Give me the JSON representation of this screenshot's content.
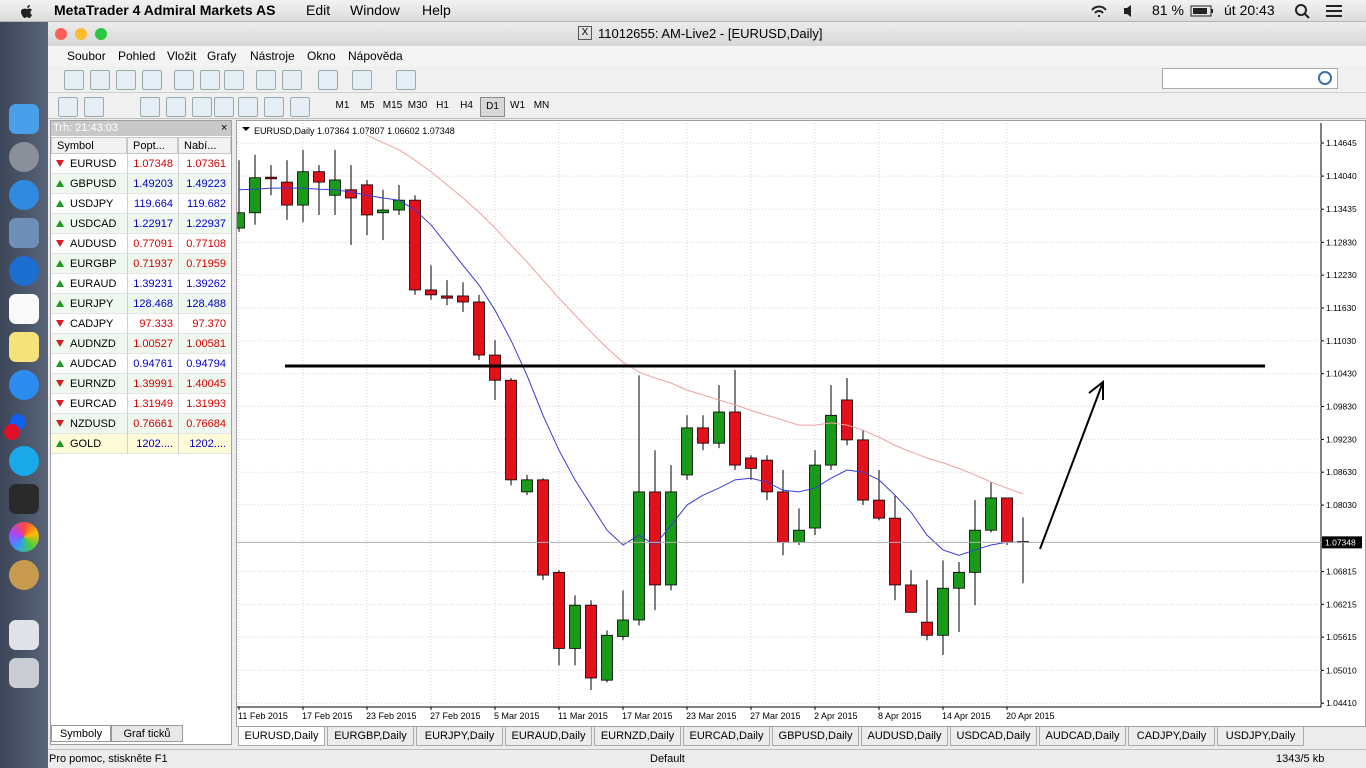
{
  "menubar": {
    "app": "MetaTrader 4 Admiral Markets AS",
    "items": [
      "Edit",
      "Window",
      "Help"
    ],
    "battery": "81 %",
    "clock": "út 20:43"
  },
  "window_title": "11012655: AM-Live2 - [EURUSD,Daily]",
  "menu": [
    "Soubor",
    "Pohled",
    "Vložit",
    "Grafy",
    "Nástroje",
    "Okno",
    "Nápověda"
  ],
  "timeframes": [
    "M1",
    "M5",
    "M15",
    "M30",
    "H1",
    "H4",
    "D1",
    "W1",
    "MN"
  ],
  "active_timeframe": "D1",
  "market_watch": {
    "title": "Trh: 21:43:03",
    "headers": [
      "Symbol",
      "Popt...",
      "Nabí..."
    ],
    "rows": [
      {
        "symbol": "EURUSD",
        "bid": "1.07348",
        "ask": "1.07361",
        "trend": "down",
        "color": "#d40000"
      },
      {
        "symbol": "GBPUSD",
        "bid": "1.49203",
        "ask": "1.49223",
        "trend": "up",
        "color": "#0000c8"
      },
      {
        "symbol": "USDJPY",
        "bid": "119.664",
        "ask": "119.682",
        "trend": "up",
        "color": "#0000c8"
      },
      {
        "symbol": "USDCAD",
        "bid": "1.22917",
        "ask": "1.22937",
        "trend": "up",
        "color": "#0000c8"
      },
      {
        "symbol": "AUDUSD",
        "bid": "0.77091",
        "ask": "0.77108",
        "trend": "down",
        "color": "#d40000"
      },
      {
        "symbol": "EURGBP",
        "bid": "0.71937",
        "ask": "0.71959",
        "trend": "up",
        "color": "#d40000"
      },
      {
        "symbol": "EURAUD",
        "bid": "1.39231",
        "ask": "1.39262",
        "trend": "up",
        "color": "#0000c8"
      },
      {
        "symbol": "EURJPY",
        "bid": "128.468",
        "ask": "128.488",
        "trend": "up",
        "color": "#0000c8"
      },
      {
        "symbol": "CADJPY",
        "bid": "97.333",
        "ask": "97.370",
        "trend": "down",
        "color": "#d40000"
      },
      {
        "symbol": "AUDNZD",
        "bid": "1.00527",
        "ask": "1.00581",
        "trend": "down",
        "color": "#d40000"
      },
      {
        "symbol": "AUDCAD",
        "bid": "0.94761",
        "ask": "0.94794",
        "trend": "up",
        "color": "#0000c8"
      },
      {
        "symbol": "EURNZD",
        "bid": "1.39991",
        "ask": "1.40045",
        "trend": "down",
        "color": "#d40000"
      },
      {
        "symbol": "EURCAD",
        "bid": "1.31949",
        "ask": "1.31993",
        "trend": "down",
        "color": "#d40000"
      },
      {
        "symbol": "NZDUSD",
        "bid": "0.76661",
        "ask": "0.76684",
        "trend": "down",
        "color": "#d40000"
      },
      {
        "symbol": "GOLD",
        "bid": "1202....",
        "ask": "1202....",
        "trend": "up",
        "color": "#0000c8"
      }
    ],
    "tabs": [
      "Symboly",
      "Graf ticků"
    ]
  },
  "chart_data": {
    "type": "candlestick",
    "title": "EURUSD,Daily",
    "categories": [
      "11 Feb 2015",
      null,
      null,
      null,
      "17 Feb 2015",
      null,
      null,
      null,
      "23 Feb 2015",
      null,
      null,
      null,
      "27 Feb 2015",
      null,
      null,
      null,
      "5 Mar 2015",
      null,
      null,
      null,
      "11 Mar 2015",
      null,
      null,
      null,
      "17 Mar 2015",
      null,
      null,
      null,
      "23 Mar 2015",
      null,
      null,
      null,
      "27 Mar 2015",
      null,
      null,
      null,
      "2 Apr 2015",
      null,
      null,
      null,
      "8 Apr 2015",
      null,
      null,
      null,
      "14 Apr 2015",
      null,
      null,
      null,
      "20 Apr 2015",
      null
    ],
    "open": [
      1.1309,
      1.1337,
      1.1402,
      1.1393,
      1.1351,
      1.1412,
      1.1369,
      1.1379,
      1.1388,
      1.1337,
      1.1342,
      1.136,
      1.1196,
      1.1185,
      1.1185,
      1.1174,
      1.1077,
      1.1031,
      1.0827,
      1.0849,
      1.068,
      1.0541,
      1.062,
      1.0483,
      1.0563,
      1.0593,
      1.0827,
      1.0657,
      1.0858,
      1.0944,
      1.0916,
      1.0973,
      1.0889,
      1.0885,
      1.0827,
      1.0735,
      1.0761,
      1.0876,
      1.0995,
      1.0922,
      1.0812,
      1.0779,
      1.0657,
      1.0589,
      1.0565,
      1.0651,
      1.068,
      1.0757,
      1.0816,
      1.07364
    ],
    "high": [
      1.1433,
      1.1443,
      1.1424,
      1.1433,
      1.1452,
      1.1424,
      1.1452,
      1.1424,
      1.1397,
      1.1379,
      1.1388,
      1.1369,
      1.1241,
      1.1214,
      1.121,
      1.1187,
      1.1104,
      1.1035,
      1.0858,
      1.0852,
      1.0684,
      1.0638,
      1.0629,
      1.0574,
      1.0647,
      1.104,
      1.0903,
      1.0876,
      1.0967,
      1.0967,
      1.1022,
      1.105,
      1.0894,
      1.0894,
      1.0867,
      1.0797,
      1.0903,
      1.1022,
      1.1035,
      1.094,
      1.0867,
      1.0821,
      1.0684,
      1.0666,
      1.0702,
      1.0699,
      1.0812,
      1.0845,
      1.0816,
      1.07807
    ],
    "low": [
      1.1302,
      1.1315,
      1.1369,
      1.1324,
      1.132,
      1.1333,
      1.1333,
      1.1278,
      1.1296,
      1.1287,
      1.1333,
      1.1187,
      1.1178,
      1.1168,
      1.1156,
      1.1068,
      1.0995,
      1.0839,
      1.0821,
      1.0666,
      1.051,
      1.051,
      1.0465,
      1.0479,
      1.0556,
      1.0583,
      1.0611,
      1.0647,
      1.0849,
      1.0903,
      1.0907,
      1.0867,
      1.0849,
      1.0812,
      1.0711,
      1.073,
      1.0748,
      1.0867,
      1.0912,
      1.0803,
      1.0775,
      1.0629,
      1.0607,
      1.0556,
      1.0529,
      1.0571,
      1.062,
      1.0753,
      1.073,
      1.06602
    ],
    "close": [
      1.1337,
      1.1401,
      1.1399,
      1.1351,
      1.1412,
      1.1393,
      1.1397,
      1.1364,
      1.1333,
      1.1342,
      1.136,
      1.1196,
      1.1187,
      1.1181,
      1.1174,
      1.1077,
      1.1031,
      1.0849,
      1.0849,
      1.0675,
      1.0541,
      1.062,
      1.0487,
      1.0565,
      1.0593,
      1.0827,
      1.0657,
      1.0827,
      1.0944,
      1.0916,
      1.0973,
      1.0876,
      1.087,
      1.0827,
      1.0735,
      1.0757,
      1.0876,
      1.0967,
      1.0922,
      1.0812,
      1.0779,
      1.0657,
      1.0607,
      1.0565,
      1.0651,
      1.068,
      1.0757,
      1.0816,
      1.0735,
      1.07348
    ],
    "bull_color": "#1a9a1a",
    "bear_color": "#e3111c",
    "overlays": [
      {
        "color": "#3a3ad0",
        "values": [
          1.1379,
          1.138,
          1.1382,
          1.1382,
          1.1382,
          1.138,
          1.1379,
          1.1375,
          1.1369,
          1.1364,
          1.136,
          1.1342,
          1.1315,
          1.1278,
          1.1241,
          1.1205,
          1.1159,
          1.1104,
          1.104,
          1.0967,
          1.0903,
          1.0849,
          1.0803,
          1.0757,
          1.073,
          1.0748,
          1.073,
          1.0766,
          1.0803,
          1.0821,
          1.0834,
          1.0849,
          1.0852,
          1.0845,
          1.083,
          1.0827,
          1.0834,
          1.0852,
          1.0867,
          1.0863,
          1.0849,
          1.0821,
          1.079,
          1.0748,
          1.0721,
          1.0711,
          1.0721,
          1.073,
          1.0735,
          1.0735
        ]
      },
      {
        "color": "#f0a0a0",
        "values": [
          null,
          null,
          null,
          null,
          null,
          null,
          null,
          null,
          1.1479,
          1.1465,
          1.1452,
          1.1433,
          1.1412,
          1.1388,
          1.1364,
          1.1338,
          1.1309,
          1.1278,
          1.1247,
          1.1214,
          1.1181,
          1.115,
          1.1119,
          1.109,
          1.1064,
          1.1046,
          1.1035,
          1.1026,
          1.1013,
          1.1004,
          1.0995,
          1.0986,
          1.0976,
          1.0967,
          1.0958,
          1.0949,
          1.0949,
          1.0953,
          1.0949,
          1.094,
          1.0927,
          1.0912,
          1.09,
          1.0889,
          1.088,
          1.087,
          1.0858,
          1.0845,
          1.0834,
          1.0823
        ]
      }
    ],
    "ylim": [
      1.0434,
      1.1501
    ],
    "yticks": [
      1.14645,
      {
        "value": 1.1404,
        "label": "1.14040"
      },
      1.13435,
      {
        "value": 1.1283,
        "label": "1.12830"
      },
      {
        "value": 1.1223,
        "label": "1.12230"
      },
      {
        "value": 1.1163,
        "label": "1.11630"
      },
      {
        "value": 1.1103,
        "label": "1.11030"
      },
      {
        "value": 1.1043,
        "label": "1.10430"
      },
      {
        "value": 1.0983,
        "label": "1.09830"
      },
      {
        "value": 1.0923,
        "label": "1.09230"
      },
      {
        "value": 1.0863,
        "label": "1.08630"
      },
      {
        "value": 1.0803,
        "label": "1.08030"
      },
      1.06815,
      1.06215,
      1.05615,
      {
        "value": 1.0501,
        "label": "1.05010"
      },
      {
        "value": 1.0441,
        "label": "1.04410"
      }
    ],
    "grid": true
  },
  "chart_tabs": [
    "EURUSD,Daily",
    "EURGBP,Daily",
    "EURJPY,Daily",
    "EURAUD,Daily",
    "EURNZD,Daily",
    "EURCAD,Daily",
    "GBPUSD,Daily",
    "AUDUSD,Daily",
    "USDCAD,Daily",
    "AUDCAD,Daily",
    "CADJPY,Daily",
    "USDJPY,Daily"
  ],
  "status": {
    "help": "Pro pomoc, stiskněte F1",
    "profile": "Default",
    "traffic": "1343/5 kb"
  }
}
